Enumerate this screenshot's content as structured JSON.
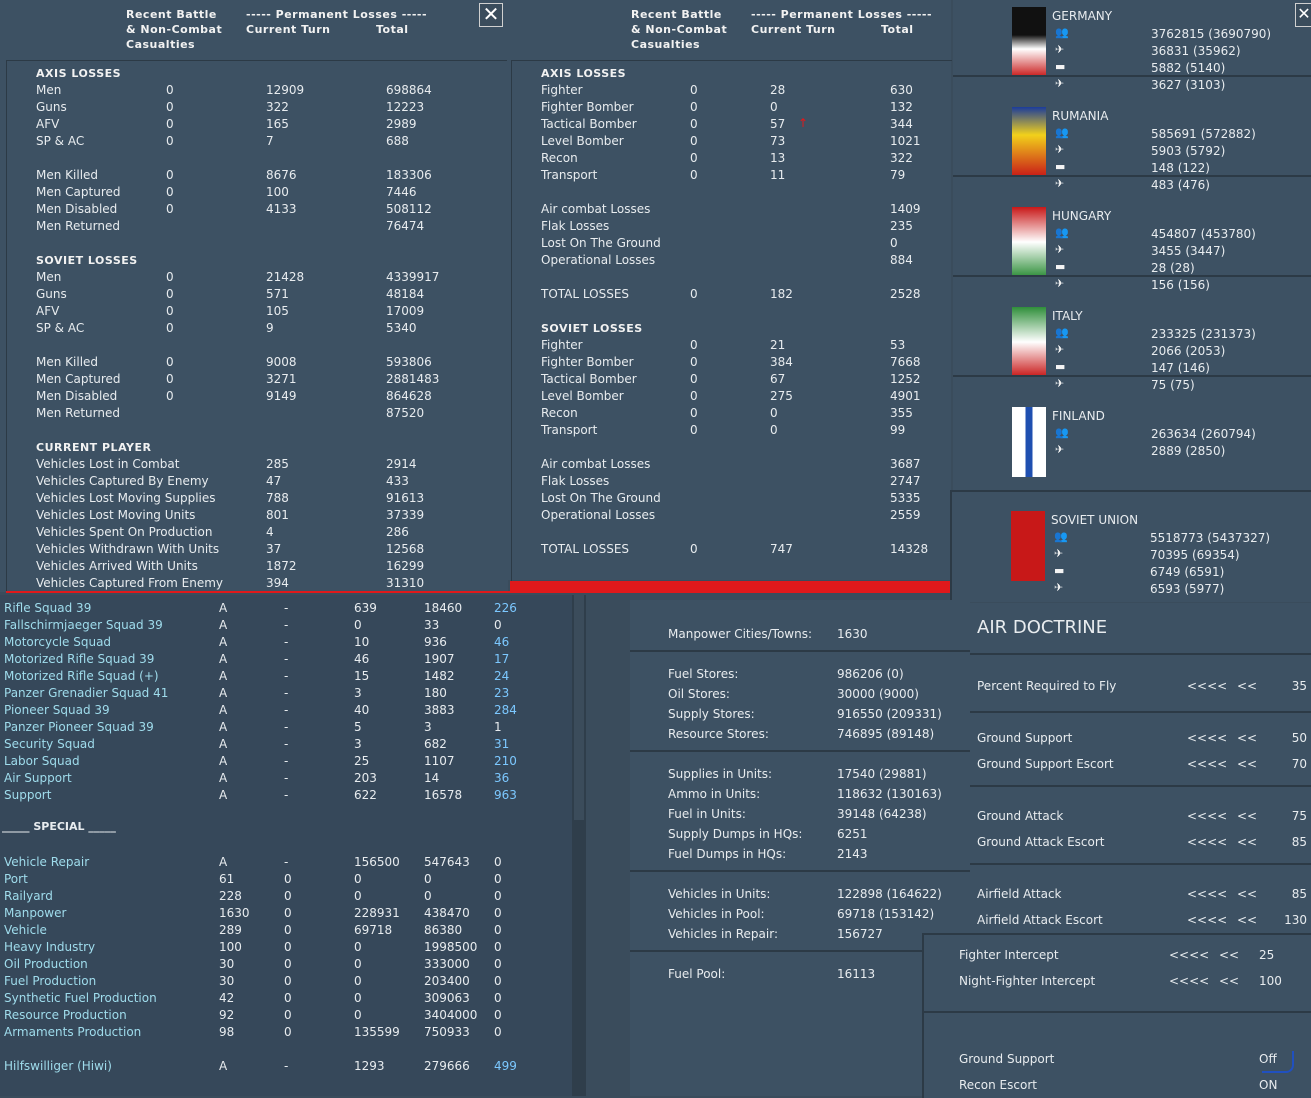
{
  "ground_losses": {
    "header": {
      "col1a": "Recent Battle",
      "col1b": "& Non-Combat",
      "col1c": "Casualties",
      "col2": "----- Permanent Losses -----",
      "col2a": "Current Turn",
      "col2b": "Total"
    },
    "axis_title": "AXIS LOSSES",
    "axis_rows": [
      {
        "label": "Men",
        "recent": "0",
        "turn": "12909",
        "total": "698864"
      },
      {
        "label": "Guns",
        "recent": "0",
        "turn": "322",
        "total": "12223"
      },
      {
        "label": "AFV",
        "recent": "0",
        "turn": "165",
        "total": "2989"
      },
      {
        "label": "SP & AC",
        "recent": "0",
        "turn": "7",
        "total": "688"
      }
    ],
    "axis_men": [
      {
        "label": "Men Killed",
        "recent": "0",
        "turn": "8676",
        "total": "183306"
      },
      {
        "label": "Men Captured",
        "recent": "0",
        "turn": "100",
        "total": "7446"
      },
      {
        "label": "Men Disabled",
        "recent": "0",
        "turn": "4133",
        "total": "508112"
      },
      {
        "label": "Men Returned",
        "recent": "",
        "turn": "",
        "total": "76474"
      }
    ],
    "soviet_title": "SOVIET LOSSES",
    "soviet_rows": [
      {
        "label": "Men",
        "recent": "0",
        "turn": "21428",
        "total": "4339917"
      },
      {
        "label": "Guns",
        "recent": "0",
        "turn": "571",
        "total": "48184"
      },
      {
        "label": "AFV",
        "recent": "0",
        "turn": "105",
        "total": "17009"
      },
      {
        "label": "SP & AC",
        "recent": "0",
        "turn": "9",
        "total": "5340"
      }
    ],
    "soviet_men": [
      {
        "label": "Men Killed",
        "recent": "0",
        "turn": "9008",
        "total": "593806"
      },
      {
        "label": "Men Captured",
        "recent": "0",
        "turn": "3271",
        "total": "2881483"
      },
      {
        "label": "Men Disabled",
        "recent": "0",
        "turn": "9149",
        "total": "864628"
      },
      {
        "label": "Men Returned",
        "recent": "",
        "turn": "",
        "total": "87520"
      }
    ],
    "player_title": "CURRENT PLAYER",
    "player_rows": [
      {
        "label": "Vehicles Lost in Combat",
        "turn": "285",
        "total": "2914"
      },
      {
        "label": "Vehicles Captured By Enemy",
        "turn": "47",
        "total": "433"
      },
      {
        "label": "Vehicles Lost Moving Supplies",
        "turn": "788",
        "total": "91613"
      },
      {
        "label": "Vehicles Lost Moving Units",
        "turn": "801",
        "total": "37339"
      },
      {
        "label": "Vehicles Spent On Production",
        "turn": "4",
        "total": "286"
      },
      {
        "label": "Vehicles Withdrawn With Units",
        "turn": "37",
        "total": "12568"
      },
      {
        "label": "Vehicles Arrived With Units",
        "turn": "1872",
        "total": "16299"
      },
      {
        "label": "Vehicles Captured From Enemy",
        "turn": "394",
        "total": "31310"
      }
    ]
  },
  "air_losses": {
    "header": {
      "col1a": "Recent Battle",
      "col1b": "& Non-Combat",
      "col1c": "Casualties",
      "col2": "----- Permanent Losses -----",
      "col2a": "Current Turn",
      "col2b": "Total"
    },
    "axis_title": "AXIS LOSSES",
    "axis_rows": [
      {
        "label": "Fighter",
        "recent": "0",
        "turn": "28",
        "total": "630"
      },
      {
        "label": "Fighter Bomber",
        "recent": "0",
        "turn": "0",
        "total": "132"
      },
      {
        "label": "Tactical Bomber",
        "recent": "0",
        "turn": "57",
        "total": "344"
      },
      {
        "label": "Level Bomber",
        "recent": "0",
        "turn": "73",
        "total": "1021"
      },
      {
        "label": "Recon",
        "recent": "0",
        "turn": "13",
        "total": "322"
      },
      {
        "label": "Transport",
        "recent": "0",
        "turn": "11",
        "total": "79"
      }
    ],
    "axis_summary": [
      {
        "label": "Air combat Losses",
        "total": "1409"
      },
      {
        "label": "Flak Losses",
        "total": "235"
      },
      {
        "label": "Lost On The Ground",
        "total": "0"
      },
      {
        "label": "Operational Losses",
        "total": "884"
      }
    ],
    "axis_total": {
      "label": "TOTAL LOSSES",
      "recent": "0",
      "turn": "182",
      "total": "2528"
    },
    "soviet_title": "SOVIET LOSSES",
    "soviet_rows": [
      {
        "label": "Fighter",
        "recent": "0",
        "turn": "21",
        "total": "53"
      },
      {
        "label": "Fighter Bomber",
        "recent": "0",
        "turn": "384",
        "total": "7668"
      },
      {
        "label": "Tactical Bomber",
        "recent": "0",
        "turn": "67",
        "total": "1252"
      },
      {
        "label": "Level Bomber",
        "recent": "0",
        "turn": "275",
        "total": "4901"
      },
      {
        "label": "Recon",
        "recent": "0",
        "turn": "0",
        "total": "355"
      },
      {
        "label": "Transport",
        "recent": "0",
        "turn": "0",
        "total": "99"
      }
    ],
    "soviet_summary": [
      {
        "label": "Air combat Losses",
        "total": "3687"
      },
      {
        "label": "Flak Losses",
        "total": "2747"
      },
      {
        "label": "Lost On The Ground",
        "total": "5335"
      },
      {
        "label": "Operational Losses",
        "total": "2559"
      }
    ],
    "soviet_total": {
      "label": "TOTAL LOSSES",
      "recent": "0",
      "turn": "747",
      "total": "14328"
    }
  },
  "nations": [
    {
      "name": "GERMANY",
      "values": [
        "3762815 (3690790)",
        "36831 (35962)",
        "5882 (5140)",
        "3627 (3103)"
      ]
    },
    {
      "name": "RUMANIA",
      "values": [
        "585691 (572882)",
        "5903 (5792)",
        "148 (122)",
        "483 (476)"
      ]
    },
    {
      "name": "HUNGARY",
      "values": [
        "454807 (453780)",
        "3455 (3447)",
        "28 (28)",
        "156 (156)"
      ]
    },
    {
      "name": "ITALY",
      "values": [
        "233325 (231373)",
        "2066 (2053)",
        "147 (146)",
        "75 (75)"
      ]
    },
    {
      "name": "FINLAND",
      "values": [
        "263634 (260794)",
        "2889 (2850)"
      ]
    },
    {
      "name": "SOVIET UNION",
      "values": [
        "5518773 (5437327)",
        "70395 (69354)",
        "6749 (6591)",
        "6593 (5977)"
      ]
    }
  ],
  "production": {
    "units": [
      {
        "name": "Rifle Squad 39",
        "a": "A",
        "b": "-",
        "c": "639",
        "d": "18460",
        "e": "226",
        "e_blue": true
      },
      {
        "name": "Fallschirmjaeger Squad 39",
        "a": "A",
        "b": "-",
        "c": "0",
        "d": "33",
        "e": "0",
        "e_blue": false
      },
      {
        "name": "Motorcycle Squad",
        "a": "A",
        "b": "-",
        "c": "10",
        "d": "936",
        "e": "46",
        "e_blue": true
      },
      {
        "name": "Motorized Rifle Squad 39",
        "a": "A",
        "b": "-",
        "c": "46",
        "d": "1907",
        "e": "17",
        "e_blue": true
      },
      {
        "name": "Motorized Rifle Squad (+)",
        "a": "A",
        "b": "-",
        "c": "15",
        "d": "1482",
        "e": "24",
        "e_blue": true
      },
      {
        "name": "Panzer Grenadier Squad 41",
        "a": "A",
        "b": "-",
        "c": "3",
        "d": "180",
        "e": "23",
        "e_blue": true
      },
      {
        "name": "Pioneer Squad 39",
        "a": "A",
        "b": "-",
        "c": "40",
        "d": "3883",
        "e": "284",
        "e_blue": true
      },
      {
        "name": "Panzer Pioneer Squad 39",
        "a": "A",
        "b": "-",
        "c": "5",
        "d": "3",
        "e": "1",
        "e_blue": false
      },
      {
        "name": "Security Squad",
        "a": "A",
        "b": "-",
        "c": "3",
        "d": "682",
        "e": "31",
        "e_blue": true
      },
      {
        "name": "Labor Squad",
        "a": "A",
        "b": "-",
        "c": "25",
        "d": "1107",
        "e": "210",
        "e_blue": true
      },
      {
        "name": "Air Support",
        "a": "A",
        "b": "-",
        "c": "203",
        "d": "14",
        "e": "36",
        "e_blue": true
      },
      {
        "name": "Support",
        "a": "A",
        "b": "-",
        "c": "622",
        "d": "16578",
        "e": "963",
        "e_blue": true
      }
    ],
    "special_title": "_____ SPECIAL _____",
    "special": [
      {
        "name": "Vehicle Repair",
        "a": "A",
        "b": "-",
        "c": "156500",
        "d": "547643",
        "e": "0"
      },
      {
        "name": "Port",
        "a": "61",
        "b": "0",
        "c": "0",
        "d": "0",
        "e": "0"
      },
      {
        "name": "Railyard",
        "a": "228",
        "b": "0",
        "c": "0",
        "d": "0",
        "e": "0"
      },
      {
        "name": "Manpower",
        "a": "1630",
        "b": "0",
        "c": "228931",
        "d": "438470",
        "e": "0"
      },
      {
        "name": "Vehicle",
        "a": "289",
        "b": "0",
        "c": "69718",
        "d": "86380",
        "e": "0"
      },
      {
        "name": "Heavy Industry",
        "a": "100",
        "b": "0",
        "c": "0",
        "d": "1998500",
        "e": "0"
      },
      {
        "name": "Oil Production",
        "a": "30",
        "b": "0",
        "c": "0",
        "d": "333000",
        "e": "0"
      },
      {
        "name": "Fuel Production",
        "a": "30",
        "b": "0",
        "c": "0",
        "d": "203400",
        "e": "0"
      },
      {
        "name": "Synthetic Fuel Production",
        "a": "42",
        "b": "0",
        "c": "0",
        "d": "309063",
        "e": "0"
      },
      {
        "name": "Resource Production",
        "a": "92",
        "b": "0",
        "c": "0",
        "d": "3404000",
        "e": "0"
      },
      {
        "name": "Armaments Production",
        "a": "98",
        "b": "0",
        "c": "135599",
        "d": "750933",
        "e": "0"
      }
    ],
    "hiwi": {
      "name": "Hilfswilliger (Hiwi)",
      "a": "A",
      "b": "-",
      "c": "1293",
      "d": "279666",
      "e": "499"
    }
  },
  "logistics": {
    "manpower": {
      "label": "Manpower Cities/Towns:",
      "value": "1630"
    },
    "stores": [
      {
        "label": "Fuel Stores:",
        "value": "986206 (0)"
      },
      {
        "label": "Oil Stores:",
        "value": "30000 (9000)"
      },
      {
        "label": "Supply Stores:",
        "value": "916550 (209331)"
      },
      {
        "label": "Resource Stores:",
        "value": "746895 (89148)"
      }
    ],
    "units": [
      {
        "label": "Supplies in Units:",
        "value": "17540 (29881)"
      },
      {
        "label": "Ammo in Units:",
        "value": "118632 (130163)"
      },
      {
        "label": "Fuel in Units:",
        "value": "39148 (64238)"
      },
      {
        "label": "Supply Dumps in HQs:",
        "value": "6251"
      },
      {
        "label": "Fuel Dumps in HQs:",
        "value": "2143"
      }
    ],
    "vehicles": [
      {
        "label": "Vehicles in Units:",
        "value": "122898 (164622)"
      },
      {
        "label": "Vehicles in Pool:",
        "value": "69718 (153142)"
      },
      {
        "label": "Vehicles in Repair:",
        "value": "156727"
      }
    ],
    "fuel_pool": {
      "label": "Fuel Pool:",
      "value": "16113"
    }
  },
  "air_doctrine": {
    "title": "AIR DOCTRINE",
    "rows": [
      {
        "label": "Percent Required to Fly",
        "big": "<<<<",
        "small": "<<",
        "value": "35"
      },
      {
        "label": "Ground Support",
        "big": "<<<<",
        "small": "<<",
        "value": "50"
      },
      {
        "label": "Ground Support Escort",
        "big": "<<<<",
        "small": "<<",
        "value": "70"
      },
      {
        "label": "Ground Attack",
        "big": "<<<<",
        "small": "<<",
        "value": "75"
      },
      {
        "label": "Ground Attack Escort",
        "big": "<<<<",
        "small": "<<",
        "value": "85"
      },
      {
        "label": "Airfield Attack",
        "big": "<<<<",
        "small": "<<",
        "value": "85"
      },
      {
        "label": "Airfield Attack Escort",
        "big": "<<<<",
        "small": "<<",
        "value": "130"
      }
    ],
    "intercept": [
      {
        "label": "Fighter Intercept",
        "big": "<<<<",
        "small": "<<",
        "value": "25"
      },
      {
        "label": "Night-Fighter Intercept",
        "big": "<<<<",
        "small": "<<",
        "value": "100"
      }
    ],
    "toggles": [
      {
        "label": "Ground Support",
        "value": "Off"
      },
      {
        "label": "Recon Escort",
        "value": "ON"
      }
    ]
  },
  "icons": {
    "close": "✕",
    "men": "men-icon",
    "plane": "plane-icon",
    "tank": "tank-icon"
  },
  "colors": {
    "accent_red": "#e0191b",
    "panel": "#3d5163",
    "cyan_text": "#9fdcec"
  }
}
